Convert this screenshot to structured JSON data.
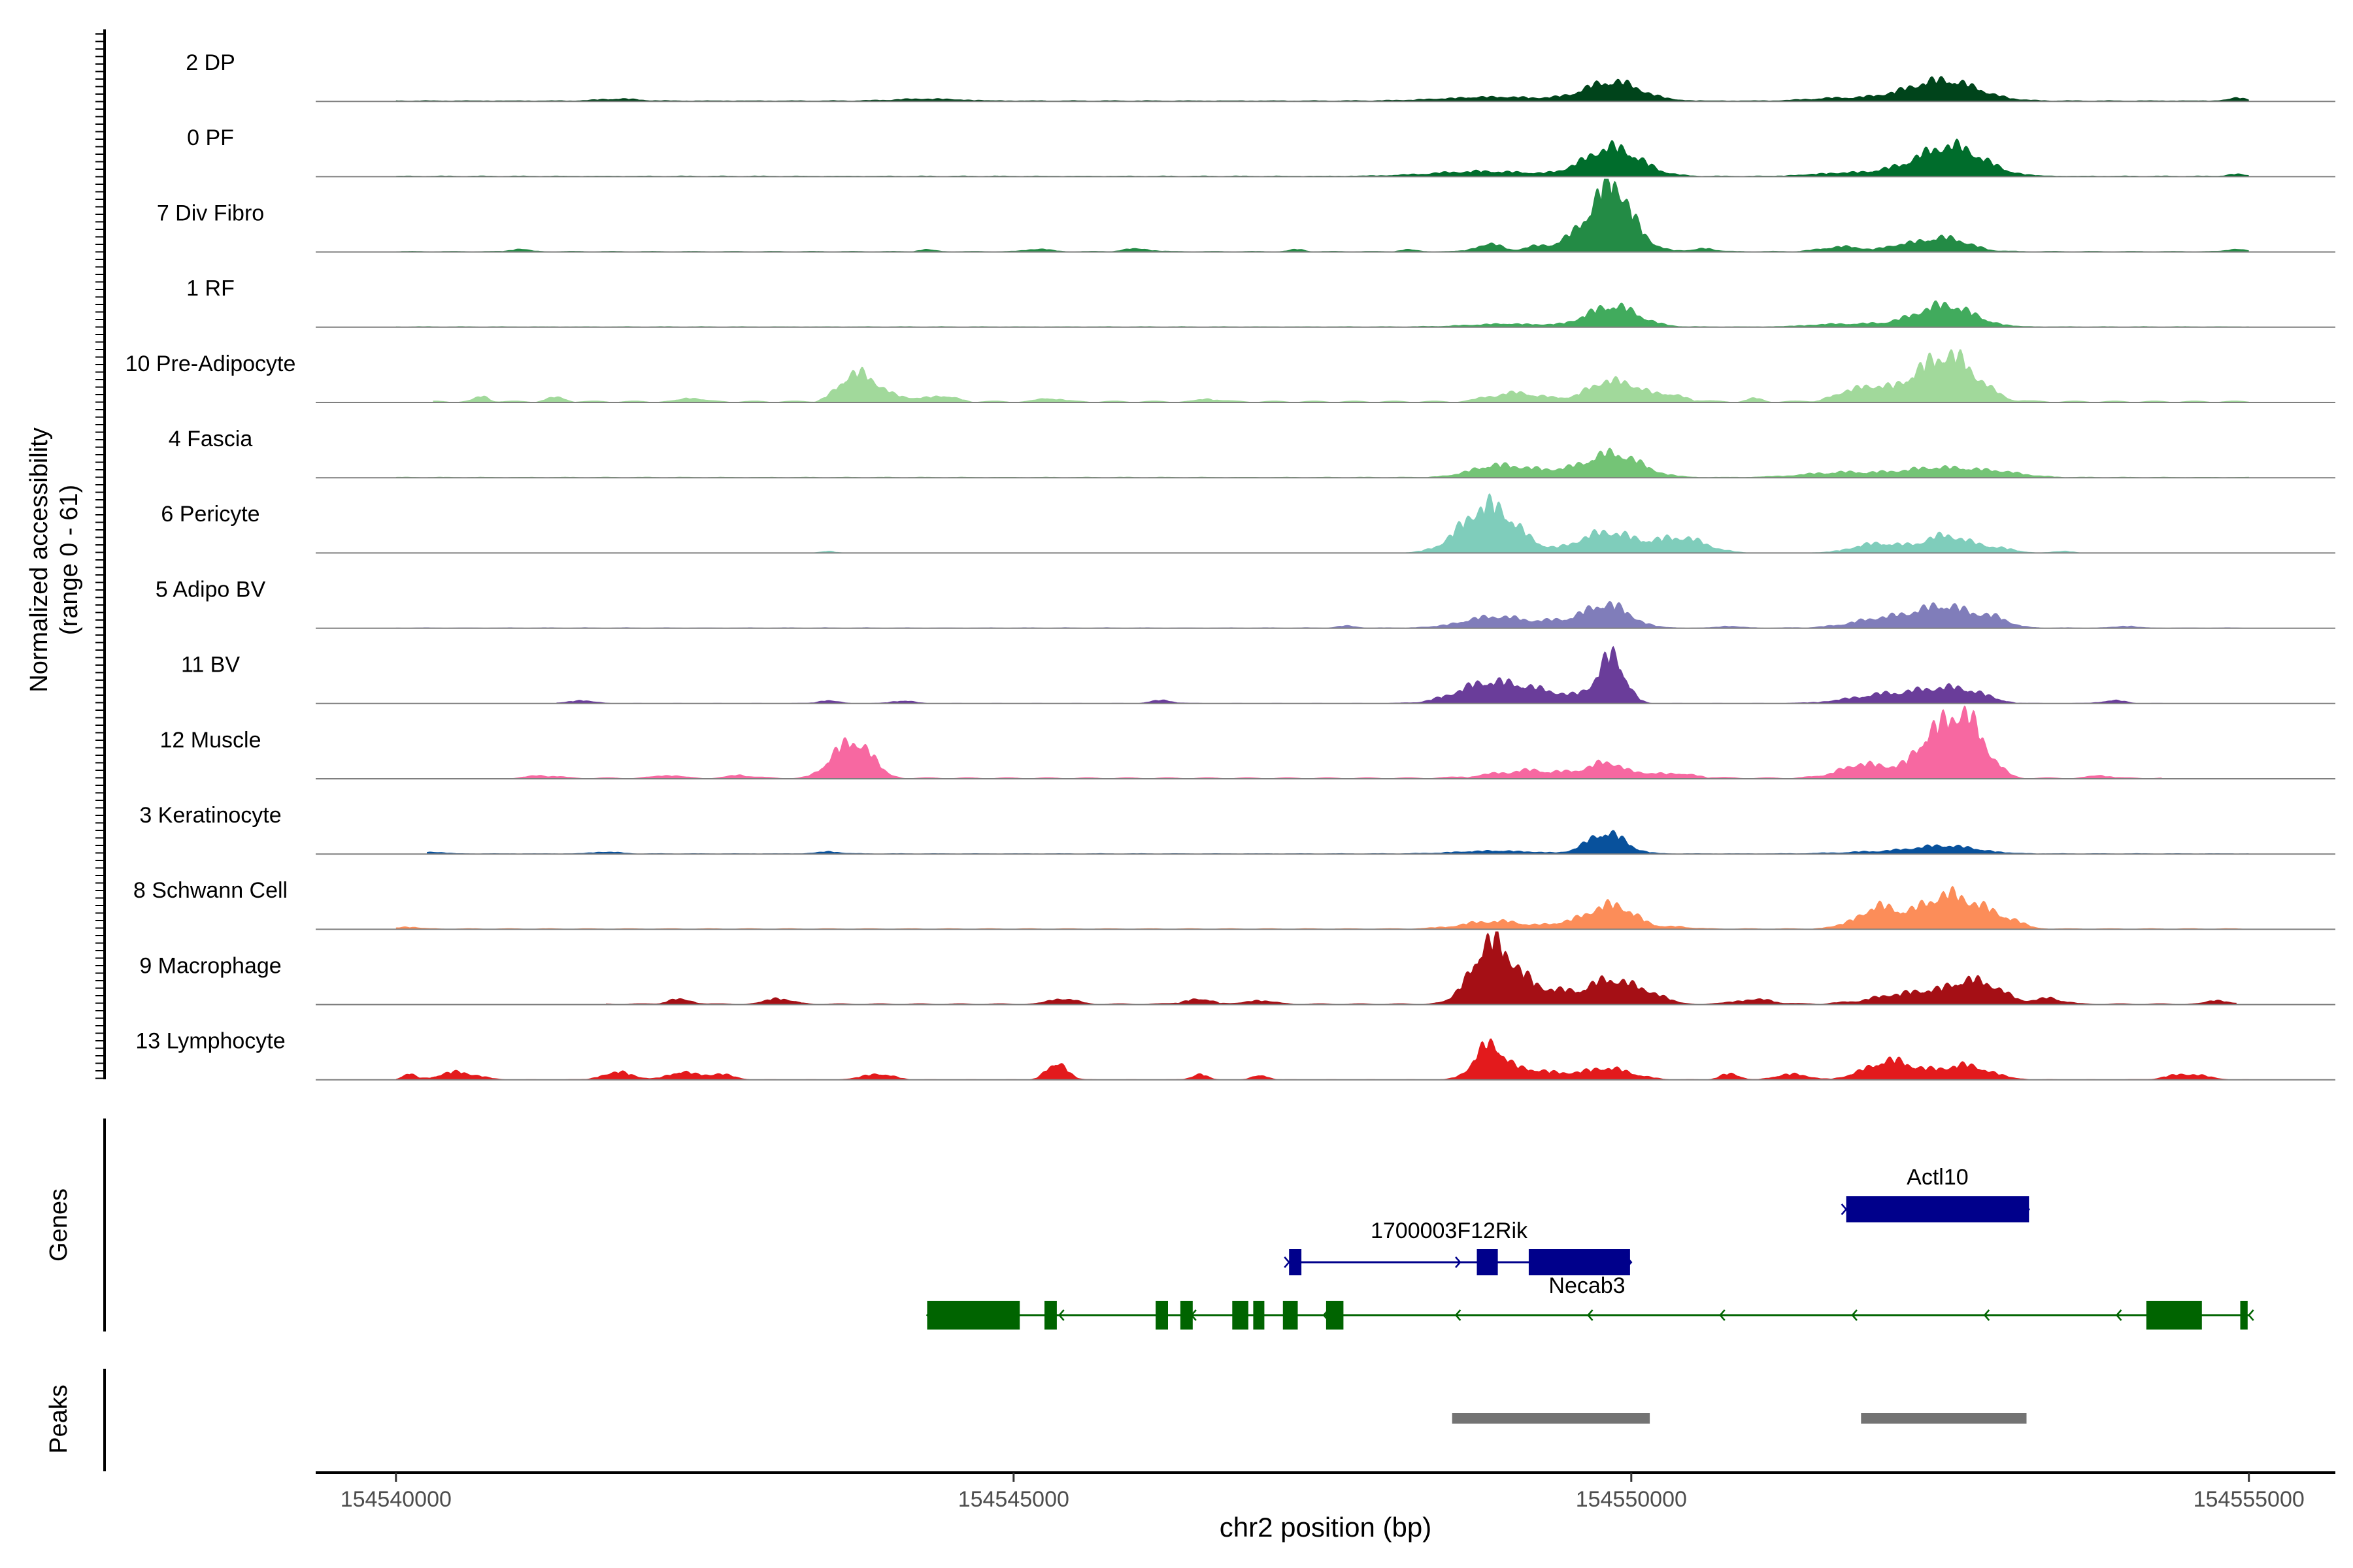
{
  "chart_data": {
    "type": "area",
    "title": "",
    "ylabel_line1": "Normalized accessibility",
    "ylabel_line2": "(range 0 - 61)",
    "yrange": [
      0,
      61
    ],
    "xlabel": "chr2 position (bp)",
    "xlim": [
      154539350,
      154555700
    ],
    "x_ticks": [
      154540000,
      154545000,
      154550000,
      154555000
    ],
    "x_tick_labels": [
      "154540000",
      "154545000",
      "154550000",
      "154555000"
    ],
    "tracks": [
      {
        "label": "2 DP",
        "color": "#00441b",
        "baseline": 0.7,
        "noise": 0.3,
        "extent": [
          154540000,
          154555000
        ],
        "peaks": [
          [
            154549850,
            20,
            220
          ],
          [
            154548900,
            4,
            400
          ],
          [
            154552550,
            20,
            260
          ],
          [
            154552150,
            4,
            300
          ],
          [
            154551600,
            2,
            200
          ],
          [
            154554900,
            3,
            70
          ],
          [
            154544300,
            2,
            250
          ],
          [
            154541800,
            2,
            150
          ]
        ]
      },
      {
        "label": "0 PF",
        "color": "#006d2c",
        "baseline": 0.6,
        "noise": 0.3,
        "extent": [
          154540000,
          154555000
        ],
        "peaks": [
          [
            154549850,
            30,
            220
          ],
          [
            154548800,
            5,
            400
          ],
          [
            154552600,
            30,
            250
          ],
          [
            154552150,
            5,
            300
          ],
          [
            154551600,
            2,
            200
          ],
          [
            154554900,
            2,
            70
          ]
        ]
      },
      {
        "label": "7 Div Fibro",
        "color": "#238b45",
        "baseline": 0.3,
        "noise": 0.6,
        "extent": [
          154540000,
          154555000
        ],
        "peaks": [
          [
            154549850,
            50,
            140
          ],
          [
            154549750,
            25,
            250
          ],
          [
            154548850,
            8,
            100
          ],
          [
            154549200,
            3,
            80
          ],
          [
            154550600,
            3,
            80
          ],
          [
            154552550,
            14,
            180
          ],
          [
            154552200,
            6,
            150
          ],
          [
            154551700,
            5,
            150
          ],
          [
            154554900,
            3,
            60
          ],
          [
            154541000,
            3,
            60
          ],
          [
            154546000,
            3,
            100
          ],
          [
            154545200,
            3,
            80
          ],
          [
            154544300,
            2,
            60
          ],
          [
            154547300,
            2,
            60
          ],
          [
            154548200,
            2,
            60
          ]
        ]
      },
      {
        "label": "1 RF",
        "color": "#41ab5d",
        "baseline": 0.5,
        "noise": 0.3,
        "extent": [
          154540000,
          154555000
        ],
        "peaks": [
          [
            154549850,
            22,
            200
          ],
          [
            154552550,
            22,
            220
          ],
          [
            154549000,
            3,
            300
          ],
          [
            154552100,
            3,
            300
          ],
          [
            154551600,
            2,
            200
          ]
        ]
      },
      {
        "label": "10 Pre-Adipocyte",
        "color": "#a1d99b",
        "baseline": 0,
        "noise": 1.5,
        "extent": [
          154540300,
          154555000
        ],
        "peaks": [
          [
            154543700,
            25,
            120
          ],
          [
            154543900,
            12,
            150
          ],
          [
            154549850,
            22,
            200
          ],
          [
            154552450,
            30,
            220
          ],
          [
            154552650,
            25,
            200
          ],
          [
            154551800,
            10,
            150
          ],
          [
            154552000,
            8,
            150
          ],
          [
            154549150,
            8,
            150
          ],
          [
            154550300,
            6,
            150
          ],
          [
            154544400,
            6,
            120
          ],
          [
            154540700,
            5,
            60
          ],
          [
            154541300,
            4,
            80
          ],
          [
            154542400,
            4,
            80
          ],
          [
            154545300,
            4,
            80
          ],
          [
            154546600,
            3,
            80
          ],
          [
            154548900,
            5,
            120
          ],
          [
            154551000,
            3,
            60
          ]
        ]
      },
      {
        "label": "4 Fascia",
        "color": "#74c476",
        "baseline": 0.4,
        "noise": 0.4,
        "extent": [
          154540000,
          154555000
        ],
        "peaks": [
          [
            154549850,
            25,
            220
          ],
          [
            154548900,
            12,
            200
          ],
          [
            154549300,
            6,
            200
          ],
          [
            154552500,
            10,
            300
          ],
          [
            154551700,
            5,
            300
          ],
          [
            154553000,
            4,
            200
          ]
        ]
      },
      {
        "label": "6 Pericyte",
        "color": "#7fcdbb",
        "baseline": 0,
        "noise": 0.3,
        "extent": [
          154540000,
          154555000
        ],
        "peaks": [
          [
            154548850,
            50,
            220
          ],
          [
            154549800,
            22,
            220
          ],
          [
            154550400,
            16,
            200
          ],
          [
            154552550,
            18,
            180
          ],
          [
            154552000,
            10,
            200
          ],
          [
            154552950,
            5,
            150
          ],
          [
            154543500,
            2,
            60
          ],
          [
            154553500,
            2,
            80
          ]
        ]
      },
      {
        "label": "5 Adipo BV",
        "color": "#807dba",
        "baseline": 0.3,
        "noise": 0.4,
        "extent": [
          154540000,
          154555000
        ],
        "peaks": [
          [
            154549800,
            25,
            180
          ],
          [
            154548900,
            12,
            250
          ],
          [
            154549400,
            5,
            150
          ],
          [
            154552550,
            22,
            220
          ],
          [
            154552050,
            10,
            250
          ],
          [
            154552950,
            8,
            120
          ],
          [
            154547700,
            2,
            80
          ],
          [
            154550800,
            2,
            80
          ],
          [
            154554000,
            2,
            80
          ]
        ]
      },
      {
        "label": "11 BV",
        "color": "#6a3d9a",
        "baseline": 0,
        "noise": 0.5,
        "extent": [
          154541300,
          154554500
        ],
        "peaks": [
          [
            154549850,
            50,
            100
          ],
          [
            154548850,
            22,
            250
          ],
          [
            154549300,
            10,
            200
          ],
          [
            154549650,
            8,
            100
          ],
          [
            154552100,
            10,
            300
          ],
          [
            154552550,
            12,
            200
          ],
          [
            154552800,
            6,
            150
          ],
          [
            154541500,
            3,
            100
          ],
          [
            154543500,
            3,
            80
          ],
          [
            154544100,
            3,
            80
          ],
          [
            154546200,
            3,
            100
          ],
          [
            154553900,
            3,
            100
          ]
        ]
      },
      {
        "label": "12 Muscle",
        "color": "#f768a1",
        "baseline": 0,
        "noise": 1.2,
        "extent": [
          154540900,
          154554300
        ],
        "peaks": [
          [
            154543750,
            35,
            120
          ],
          [
            154543550,
            18,
            100
          ],
          [
            154552450,
            45,
            150
          ],
          [
            154552700,
            55,
            120
          ],
          [
            154552900,
            15,
            100
          ],
          [
            154551900,
            15,
            200
          ],
          [
            154549800,
            15,
            150
          ],
          [
            154549200,
            8,
            300
          ],
          [
            154550300,
            5,
            200
          ],
          [
            154541200,
            3,
            100
          ],
          [
            154542200,
            3,
            100
          ],
          [
            154542800,
            3,
            100
          ],
          [
            154553800,
            3,
            80
          ]
        ]
      },
      {
        "label": "3 Keratinocyte",
        "color": "#08519c",
        "baseline": 0.4,
        "noise": 0.3,
        "extent": [
          154540250,
          154555000
        ],
        "peaks": [
          [
            154549800,
            22,
            150
          ],
          [
            154548900,
            3,
            300
          ],
          [
            154552550,
            8,
            250
          ],
          [
            154552000,
            2,
            300
          ],
          [
            154540300,
            2,
            80
          ],
          [
            154541700,
            2,
            100
          ],
          [
            154543500,
            2,
            100
          ]
        ]
      },
      {
        "label": "8 Schwann Cell",
        "color": "#fc8d59",
        "baseline": 0.3,
        "noise": 0.6,
        "extent": [
          154540000,
          154555000
        ],
        "peaks": [
          [
            154549850,
            25,
            180
          ],
          [
            154548900,
            8,
            250
          ],
          [
            154549500,
            5,
            150
          ],
          [
            154552550,
            35,
            220
          ],
          [
            154552000,
            22,
            150
          ],
          [
            154552900,
            10,
            150
          ],
          [
            154553100,
            4,
            100
          ],
          [
            154540100,
            2,
            80
          ],
          [
            154550400,
            2,
            100
          ],
          [
            154551700,
            2,
            100
          ]
        ]
      },
      {
        "label": "9 Macrophage",
        "color": "#a50f15",
        "baseline": 0,
        "noise": 1.0,
        "extent": [
          154541700,
          154554900
        ],
        "peaks": [
          [
            154548850,
            60,
            150
          ],
          [
            154549100,
            20,
            150
          ],
          [
            154549850,
            26,
            200
          ],
          [
            154549400,
            10,
            150
          ],
          [
            154550200,
            6,
            100
          ],
          [
            154552800,
            22,
            200
          ],
          [
            154552300,
            12,
            300
          ],
          [
            154553400,
            6,
            100
          ],
          [
            154551000,
            5,
            150
          ],
          [
            154542300,
            5,
            100
          ],
          [
            154543100,
            6,
            100
          ],
          [
            154545400,
            6,
            100
          ],
          [
            154546500,
            5,
            120
          ],
          [
            154547000,
            4,
            100
          ],
          [
            154554750,
            4,
            80
          ]
        ]
      },
      {
        "label": "13 Lymphocyte",
        "color": "#e31a1c",
        "baseline": 0,
        "noise": 0.5,
        "extent": [
          154540000,
          154555000
        ],
        "peaks": [
          [
            154548850,
            35,
            120
          ],
          [
            154549200,
            10,
            200
          ],
          [
            154549800,
            12,
            200
          ],
          [
            154552100,
            20,
            200
          ],
          [
            154552700,
            15,
            200
          ],
          [
            154540100,
            6,
            50
          ],
          [
            154540500,
            8,
            150
          ],
          [
            154541800,
            8,
            120
          ],
          [
            154542300,
            8,
            100
          ],
          [
            154542600,
            6,
            120
          ],
          [
            154543900,
            6,
            120
          ],
          [
            154545350,
            18,
            80
          ],
          [
            154546500,
            6,
            60
          ],
          [
            154547000,
            5,
            60
          ],
          [
            154550800,
            6,
            80
          ],
          [
            154551300,
            6,
            120
          ],
          [
            154554500,
            6,
            150
          ]
        ]
      }
    ],
    "genes_axis_label": "Genes",
    "genes": [
      {
        "name": "Actl10",
        "color": "#00008b",
        "strand": "+",
        "row": 0,
        "tx": [
          154551740,
          154553220
        ],
        "exons": [
          [
            154551740,
            154553220
          ]
        ]
      },
      {
        "name": "1700003F12Rik",
        "color": "#00008b",
        "strand": "+",
        "row": 1,
        "tx": [
          154547230,
          154550000
        ],
        "exons": [
          [
            154547230,
            154547330
          ],
          [
            154548750,
            154548920
          ],
          [
            154549170,
            154549990
          ]
        ]
      },
      {
        "name": "Necab3",
        "color": "#006400",
        "strand": "-",
        "row": 2,
        "tx": [
          154544300,
          154555000
        ],
        "exons": [
          [
            154544300,
            154545050
          ],
          [
            154545250,
            154545350
          ],
          [
            154546150,
            154546250
          ],
          [
            154546350,
            154546450
          ],
          [
            154546770,
            154546900
          ],
          [
            154546940,
            154547030
          ],
          [
            154547180,
            154547300
          ],
          [
            154547530,
            154547670
          ],
          [
            154554170,
            154554620
          ],
          [
            154554930,
            154554990
          ]
        ]
      }
    ],
    "peaks_axis_label": "Peaks",
    "peaks": [
      [
        154548550,
        154550150
      ],
      [
        154551860,
        154553200
      ]
    ],
    "peak_color": "#737373"
  }
}
